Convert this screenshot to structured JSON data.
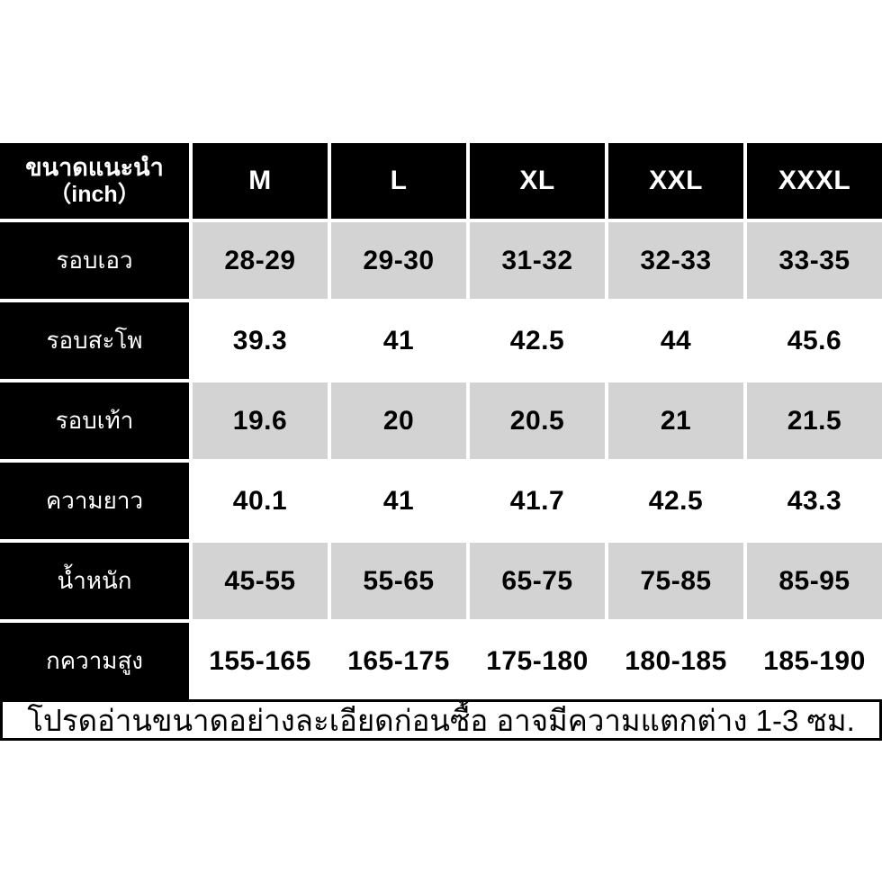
{
  "chart_data": {
    "type": "table",
    "title": "ขนาดแนะนำ（inch）",
    "columns": [
      "M",
      "L",
      "XL",
      "XXL",
      "XXXL"
    ],
    "rows": [
      {
        "label": "รอบเอว",
        "values": [
          "28-29",
          "29-30",
          "31-32",
          "32-33",
          "33-35"
        ]
      },
      {
        "label": "รอบสะโพ",
        "values": [
          "39.3",
          "41",
          "42.5",
          "44",
          "45.6"
        ]
      },
      {
        "label": "รอบเท้า",
        "values": [
          "19.6",
          "20",
          "20.5",
          "21",
          "21.5"
        ]
      },
      {
        "label": "ความยาว",
        "values": [
          "40.1",
          "41",
          "41.7",
          "42.5",
          "43.3"
        ]
      },
      {
        "label": "น้ำหนัก",
        "values": [
          "45-55",
          "55-65",
          "65-75",
          "75-85",
          "85-95"
        ]
      },
      {
        "label": "กความสูง",
        "values": [
          "155-165",
          "165-175",
          "175-180",
          "180-185",
          "185-190"
        ]
      }
    ]
  },
  "header": {
    "label_line1": "ขนาดแนะนำ",
    "label_line2": "（inch）",
    "columns": [
      "M",
      "L",
      "XL",
      "XXL",
      "XXXL"
    ]
  },
  "rows": [
    {
      "label": "รอบเอว",
      "values": [
        "28-29",
        "29-30",
        "31-32",
        "32-33",
        "33-35"
      ]
    },
    {
      "label": "รอบสะโพ",
      "values": [
        "39.3",
        "41",
        "42.5",
        "44",
        "45.6"
      ]
    },
    {
      "label": "รอบเท้า",
      "values": [
        "19.6",
        "20",
        "20.5",
        "21",
        "21.5"
      ]
    },
    {
      "label": "ความยาว",
      "values": [
        "40.1",
        "41",
        "41.7",
        "42.5",
        "43.3"
      ]
    },
    {
      "label": "น้ำหนัก",
      "values": [
        "45-55",
        "55-65",
        "65-75",
        "75-85",
        "85-95"
      ]
    },
    {
      "label": "กความสูง",
      "values": [
        "155-165",
        "165-175",
        "175-180",
        "180-185",
        "185-190"
      ]
    }
  ],
  "footer": {
    "notice": "โปรดอ่านขนาดอย่างละเอียดก่อนซื้อ อาจมีความแตกต่าง 1-3 ซม."
  },
  "colors": {
    "cell_background": "#000000",
    "cell_text": "#ffffff",
    "shaded_row": "#d3d3d3",
    "divider": "#ffffff",
    "value_text": "#000000"
  }
}
